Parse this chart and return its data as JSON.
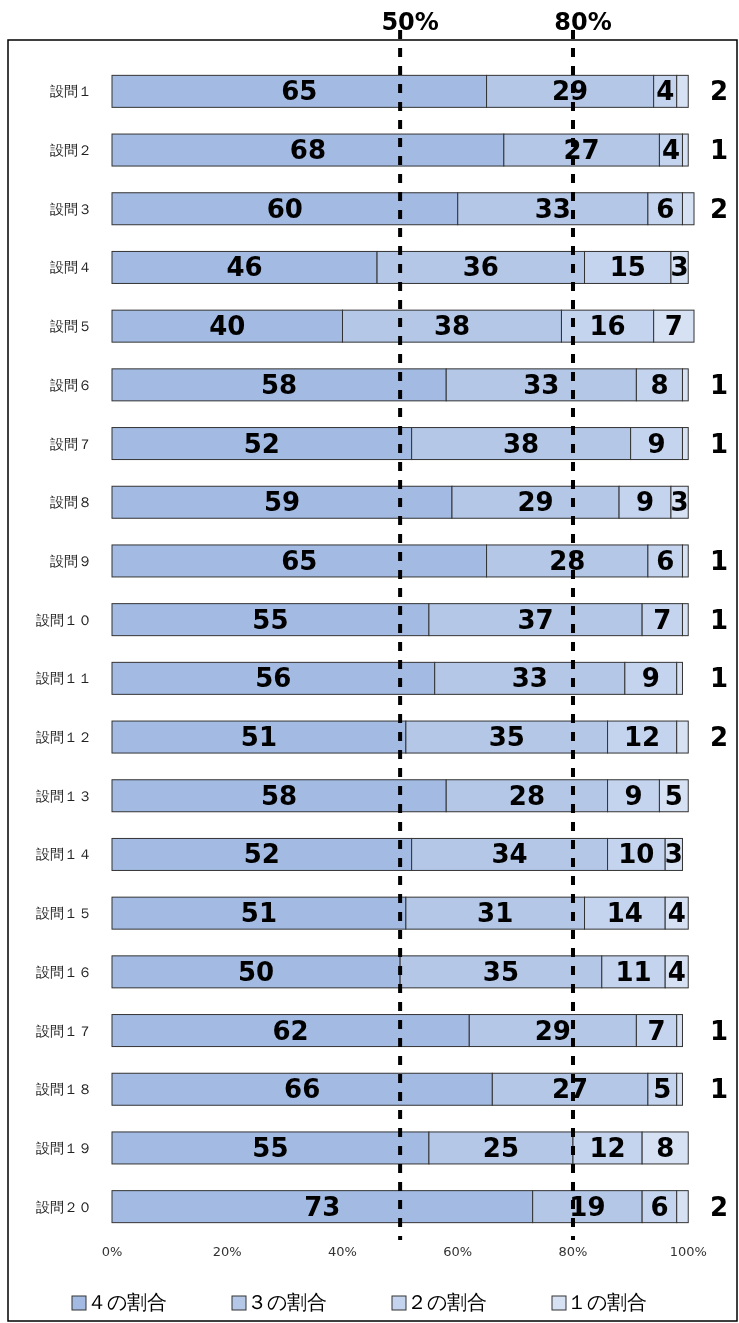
{
  "chart_data": {
    "type": "bar",
    "orientation": "horizontal",
    "stacked": true,
    "data_labels": true,
    "legend": "bottom",
    "grid": false,
    "categories": [
      "設問１",
      "設問２",
      "設問３",
      "設問４",
      "設問５",
      "設問６",
      "設問７",
      "設問８",
      "設問９",
      "設問１０",
      "設問１１",
      "設問１２",
      "設問１３",
      "設問１４",
      "設問１５",
      "設問１６",
      "設問１７",
      "設問１８",
      "設問１９",
      "設問２０"
    ],
    "series": [
      {
        "name": "４の割合",
        "color": "#a3bbe3",
        "values": [
          65,
          68,
          60,
          46,
          40,
          58,
          52,
          59,
          65,
          55,
          56,
          51,
          58,
          52,
          51,
          50,
          62,
          66,
          55,
          73
        ]
      },
      {
        "name": "３の割合",
        "color": "#b4c7e7",
        "values": [
          29,
          27,
          33,
          36,
          38,
          33,
          38,
          29,
          28,
          37,
          33,
          35,
          28,
          34,
          31,
          35,
          29,
          27,
          25,
          19
        ]
      },
      {
        "name": "２の割合",
        "color": "#c5d4ee",
        "values": [
          4,
          4,
          6,
          15,
          16,
          8,
          9,
          9,
          6,
          7,
          9,
          12,
          9,
          10,
          14,
          11,
          7,
          5,
          12,
          6
        ]
      },
      {
        "name": "１の割合",
        "color": "#d6e1f3",
        "values": [
          2,
          1,
          2,
          3,
          7,
          1,
          1,
          3,
          1,
          1,
          1,
          2,
          5,
          3,
          4,
          4,
          1,
          1,
          8,
          2
        ]
      }
    ],
    "xlim": [
      0,
      101
    ],
    "xticks": [
      {
        "value": 0,
        "label": "0%"
      },
      {
        "value": 20,
        "label": "20%"
      },
      {
        "value": 40,
        "label": "40%"
      },
      {
        "value": 60,
        "label": "60%"
      },
      {
        "value": 80,
        "label": "80%"
      },
      {
        "value": 100,
        "label": "100%"
      }
    ],
    "ref_lines": [
      {
        "axis": "x",
        "value": 50,
        "label": "50%",
        "color": "#000000",
        "line_style": "dashed"
      },
      {
        "axis": "x",
        "value": 80,
        "label": "80%",
        "color": "#000000",
        "line_style": "dashed"
      }
    ]
  }
}
